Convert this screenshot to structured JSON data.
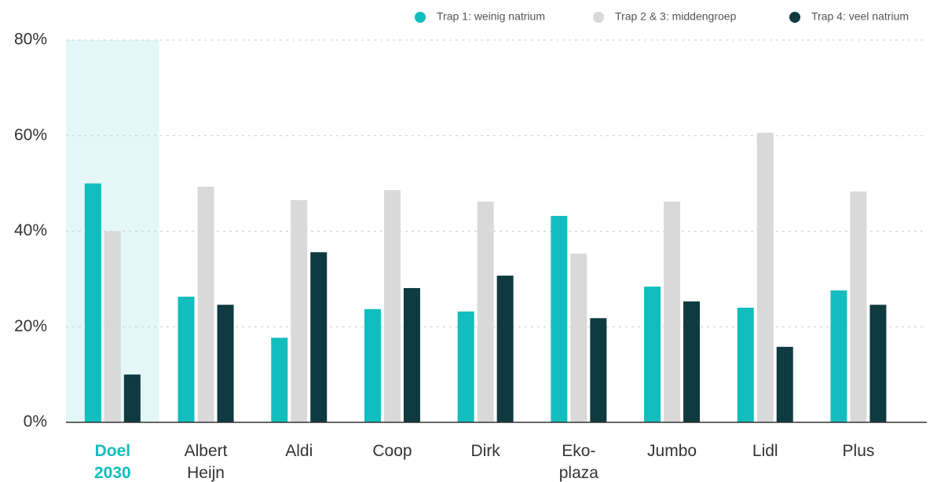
{
  "chart_data": {
    "type": "bar",
    "categories": [
      "Doel 2030",
      "Albert Heijn",
      "Aldi",
      "Coop",
      "Dirk",
      "Eko-plaza",
      "Jumbo",
      "Lidl",
      "Plus"
    ],
    "highlight": 0,
    "series": [
      {
        "name": "Trap 1: weinig natrium",
        "color": "#12bdbd",
        "values": [
          50,
          26.3,
          17.7,
          23.7,
          23.2,
          43.2,
          28.4,
          24.0,
          27.6
        ]
      },
      {
        "name": "Trap 2 & 3: middengroep",
        "color": "#d9d9d9",
        "values": [
          40,
          49.3,
          46.5,
          48.6,
          46.2,
          35.3,
          46.2,
          60.6,
          48.3
        ]
      },
      {
        "name": "Trap 4: veel natrium",
        "color": "#0e3a40",
        "values": [
          10,
          24.6,
          35.6,
          28.1,
          30.7,
          21.8,
          25.3,
          15.8,
          24.6
        ]
      }
    ],
    "ylim": [
      0,
      80
    ],
    "yticks": [
      {
        "value": 0,
        "label": "0%"
      },
      {
        "value": 20,
        "label": "20%"
      },
      {
        "value": 40,
        "label": "40%"
      },
      {
        "value": 60,
        "label": "60%"
      },
      {
        "value": 80,
        "label": "80%"
      }
    ],
    "grid": true,
    "legend": "top-right"
  }
}
